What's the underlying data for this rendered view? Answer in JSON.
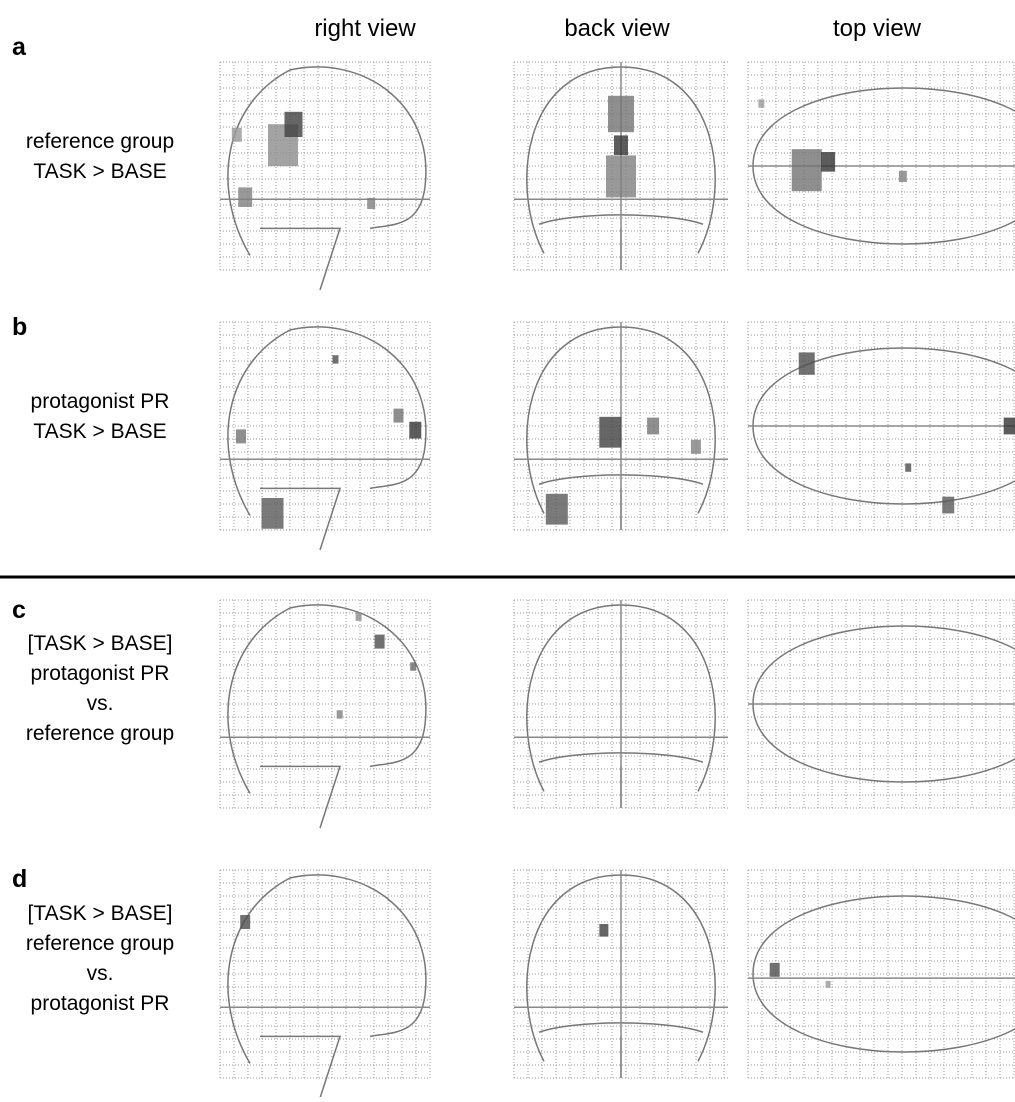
{
  "columns": [
    "right view",
    "back view",
    "top view"
  ],
  "rows": [
    {
      "letter": "a",
      "label": [
        "reference group",
        "TASK > BASE"
      ]
    },
    {
      "letter": "b",
      "label": [
        "protagonist PR",
        "TASK > BASE"
      ]
    },
    {
      "letter": "c",
      "label": [
        "[TASK > BASE]",
        "protagonist PR",
        "vs.",
        "reference group"
      ]
    },
    {
      "letter": "d",
      "label": [
        "[TASK > BASE]",
        "reference group",
        "vs.",
        "protagonist PR"
      ]
    }
  ]
}
